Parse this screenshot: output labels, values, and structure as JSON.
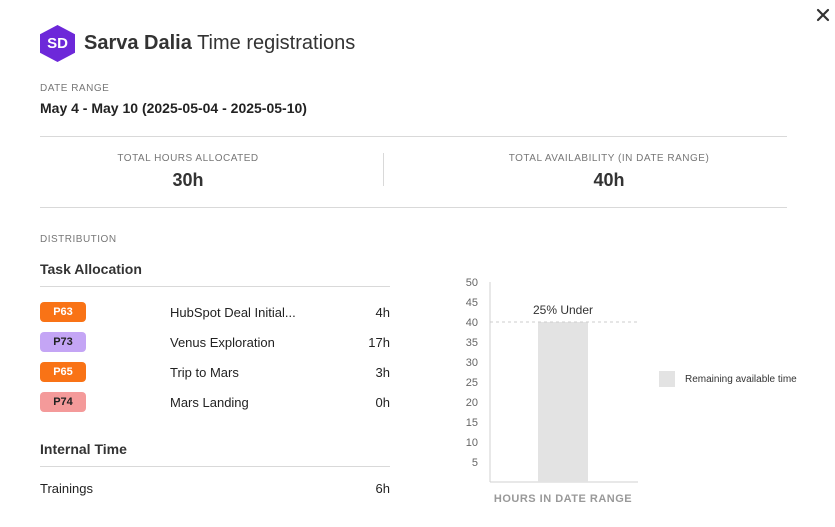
{
  "header": {
    "avatar_initials": "SD",
    "avatar_color": "#6d28d9",
    "name": "Sarva Dalia",
    "title_suffix": "Time registrations"
  },
  "date_range": {
    "label": "DATE RANGE",
    "value": "May 4 - May 10 (2025-05-04 - 2025-05-10)"
  },
  "stats": {
    "allocated_label": "TOTAL HOURS ALLOCATED",
    "allocated_value": "30h",
    "availability_label": "TOTAL AVAILABILITY (IN DATE RANGE)",
    "availability_value": "40h"
  },
  "distribution": {
    "label": "DISTRIBUTION",
    "task_allocation_title": "Task Allocation",
    "tasks": [
      {
        "badge": "P63",
        "badge_bg": "#f97316",
        "badge_fg": "#ffffff",
        "name": "HubSpot Deal Initial...",
        "hours": "4h"
      },
      {
        "badge": "P73",
        "badge_bg": "#c4a5f5",
        "badge_fg": "#222222",
        "name": "Venus Exploration",
        "hours": "17h"
      },
      {
        "badge": "P65",
        "badge_bg": "#f97316",
        "badge_fg": "#ffffff",
        "name": "Trip to Mars",
        "hours": "3h"
      },
      {
        "badge": "P74",
        "badge_bg": "#f49a9a",
        "badge_fg": "#222222",
        "name": "Mars Landing",
        "hours": "0h"
      }
    ],
    "internal_time_title": "Internal Time",
    "internal": [
      {
        "name": "Trainings",
        "hours": "6h"
      }
    ]
  },
  "chart_data": {
    "type": "bar",
    "categories": [
      ""
    ],
    "values": [
      40
    ],
    "xlabel": "HOURS IN DATE RANGE",
    "ylabel": "",
    "ylim": [
      0,
      50
    ],
    "yticks": [
      5,
      10,
      15,
      20,
      25,
      30,
      35,
      40,
      45,
      50
    ],
    "reference_line": 40,
    "annotation": "25% Under",
    "bar_color": "#e3e3e3",
    "legend": [
      {
        "name": "Remaining available time",
        "color": "#e3e3e3"
      }
    ],
    "legend_position": "right"
  }
}
